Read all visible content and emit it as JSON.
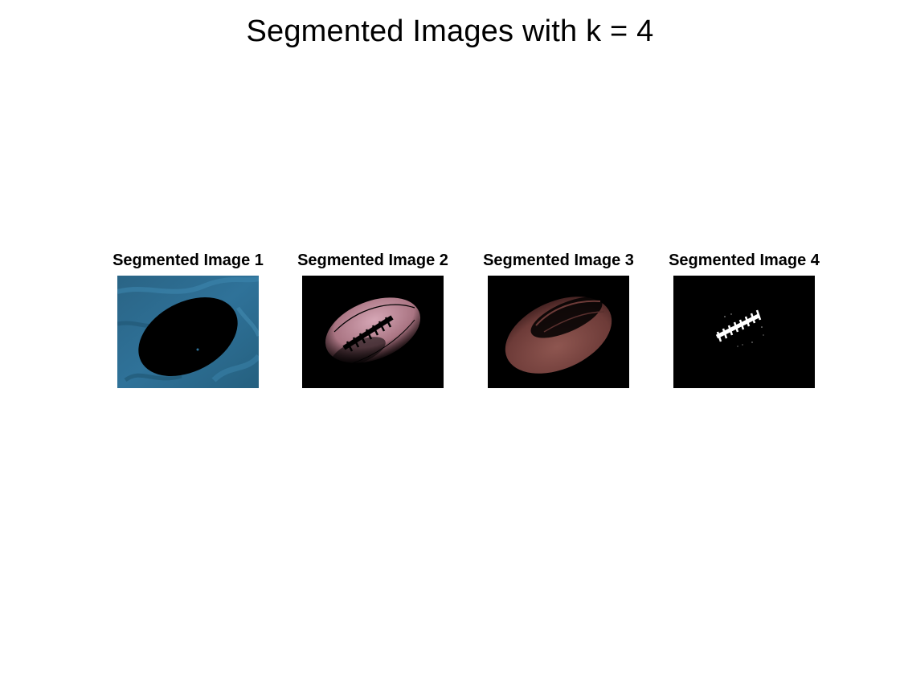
{
  "figure": {
    "title": "Segmented Images with k = 4"
  },
  "panels": [
    {
      "title": "Segmented Image 1"
    },
    {
      "title": "Segmented Image 2"
    },
    {
      "title": "Segmented Image 3"
    },
    {
      "title": "Segmented Image 4"
    }
  ],
  "colors": {
    "background": "#ffffff",
    "cluster1_fabric": "#2f6f95",
    "cluster2_leather_light": "#b88a98",
    "cluster3_leather_dark": "#7a4a44",
    "cluster4_laces": "#ffffff",
    "masked": "#000000"
  }
}
